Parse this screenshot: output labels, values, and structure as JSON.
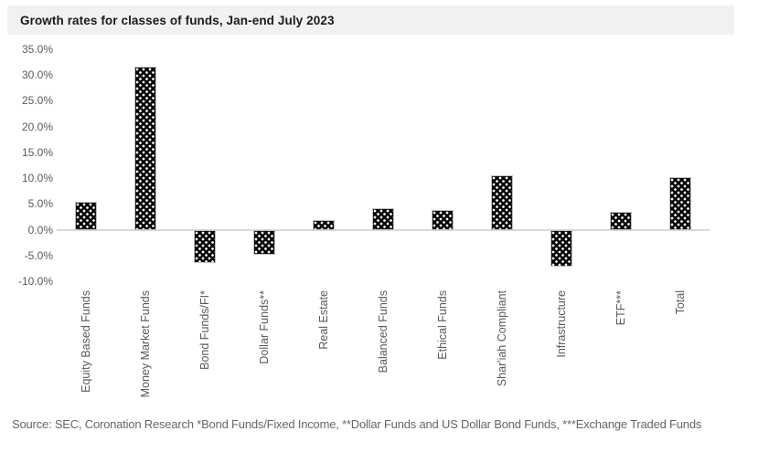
{
  "header": {
    "title": "Growth rates for classes of funds, Jan-end July 2023"
  },
  "footer": {
    "source": "Source: SEC, Coronation Research *Bond Funds/Fixed Income, **Dollar Funds and US Dollar Bond Funds, ***Exchange Traded Funds"
  },
  "colors": {
    "title_band_bg": "#f1f1f1",
    "title_text": "#1a1a1a",
    "axis_label_text": "#595959",
    "axis_line": "#d9d9d9",
    "bar_fill": "#0a0a0a",
    "bar_dot": "#ffffff",
    "source_text": "#676767"
  },
  "chart_data": {
    "type": "bar",
    "title": "Growth rates for classes of funds, Jan-end July 2023",
    "categories": [
      "Equity Based Funds",
      "Money Market Funds",
      "Bond Funds/FI*",
      "Dollar Funds**",
      "Real Estate",
      "Balanced Funds",
      "Ethical Funds",
      "Shar'iah Compliant",
      "Infrastructure",
      "ETF***",
      "Total"
    ],
    "values": [
      5.5,
      31.6,
      -6.5,
      -4.9,
      1.9,
      4.1,
      3.8,
      10.6,
      -7.1,
      3.4,
      10.2
    ],
    "xlabel": "",
    "ylabel": "",
    "ylim": [
      -10,
      35
    ],
    "ytick_step": 5,
    "ytick_format": "one_decimal_percent",
    "grid": false,
    "legend": "none",
    "bar_style": "black with white polka-dot pattern fill"
  }
}
